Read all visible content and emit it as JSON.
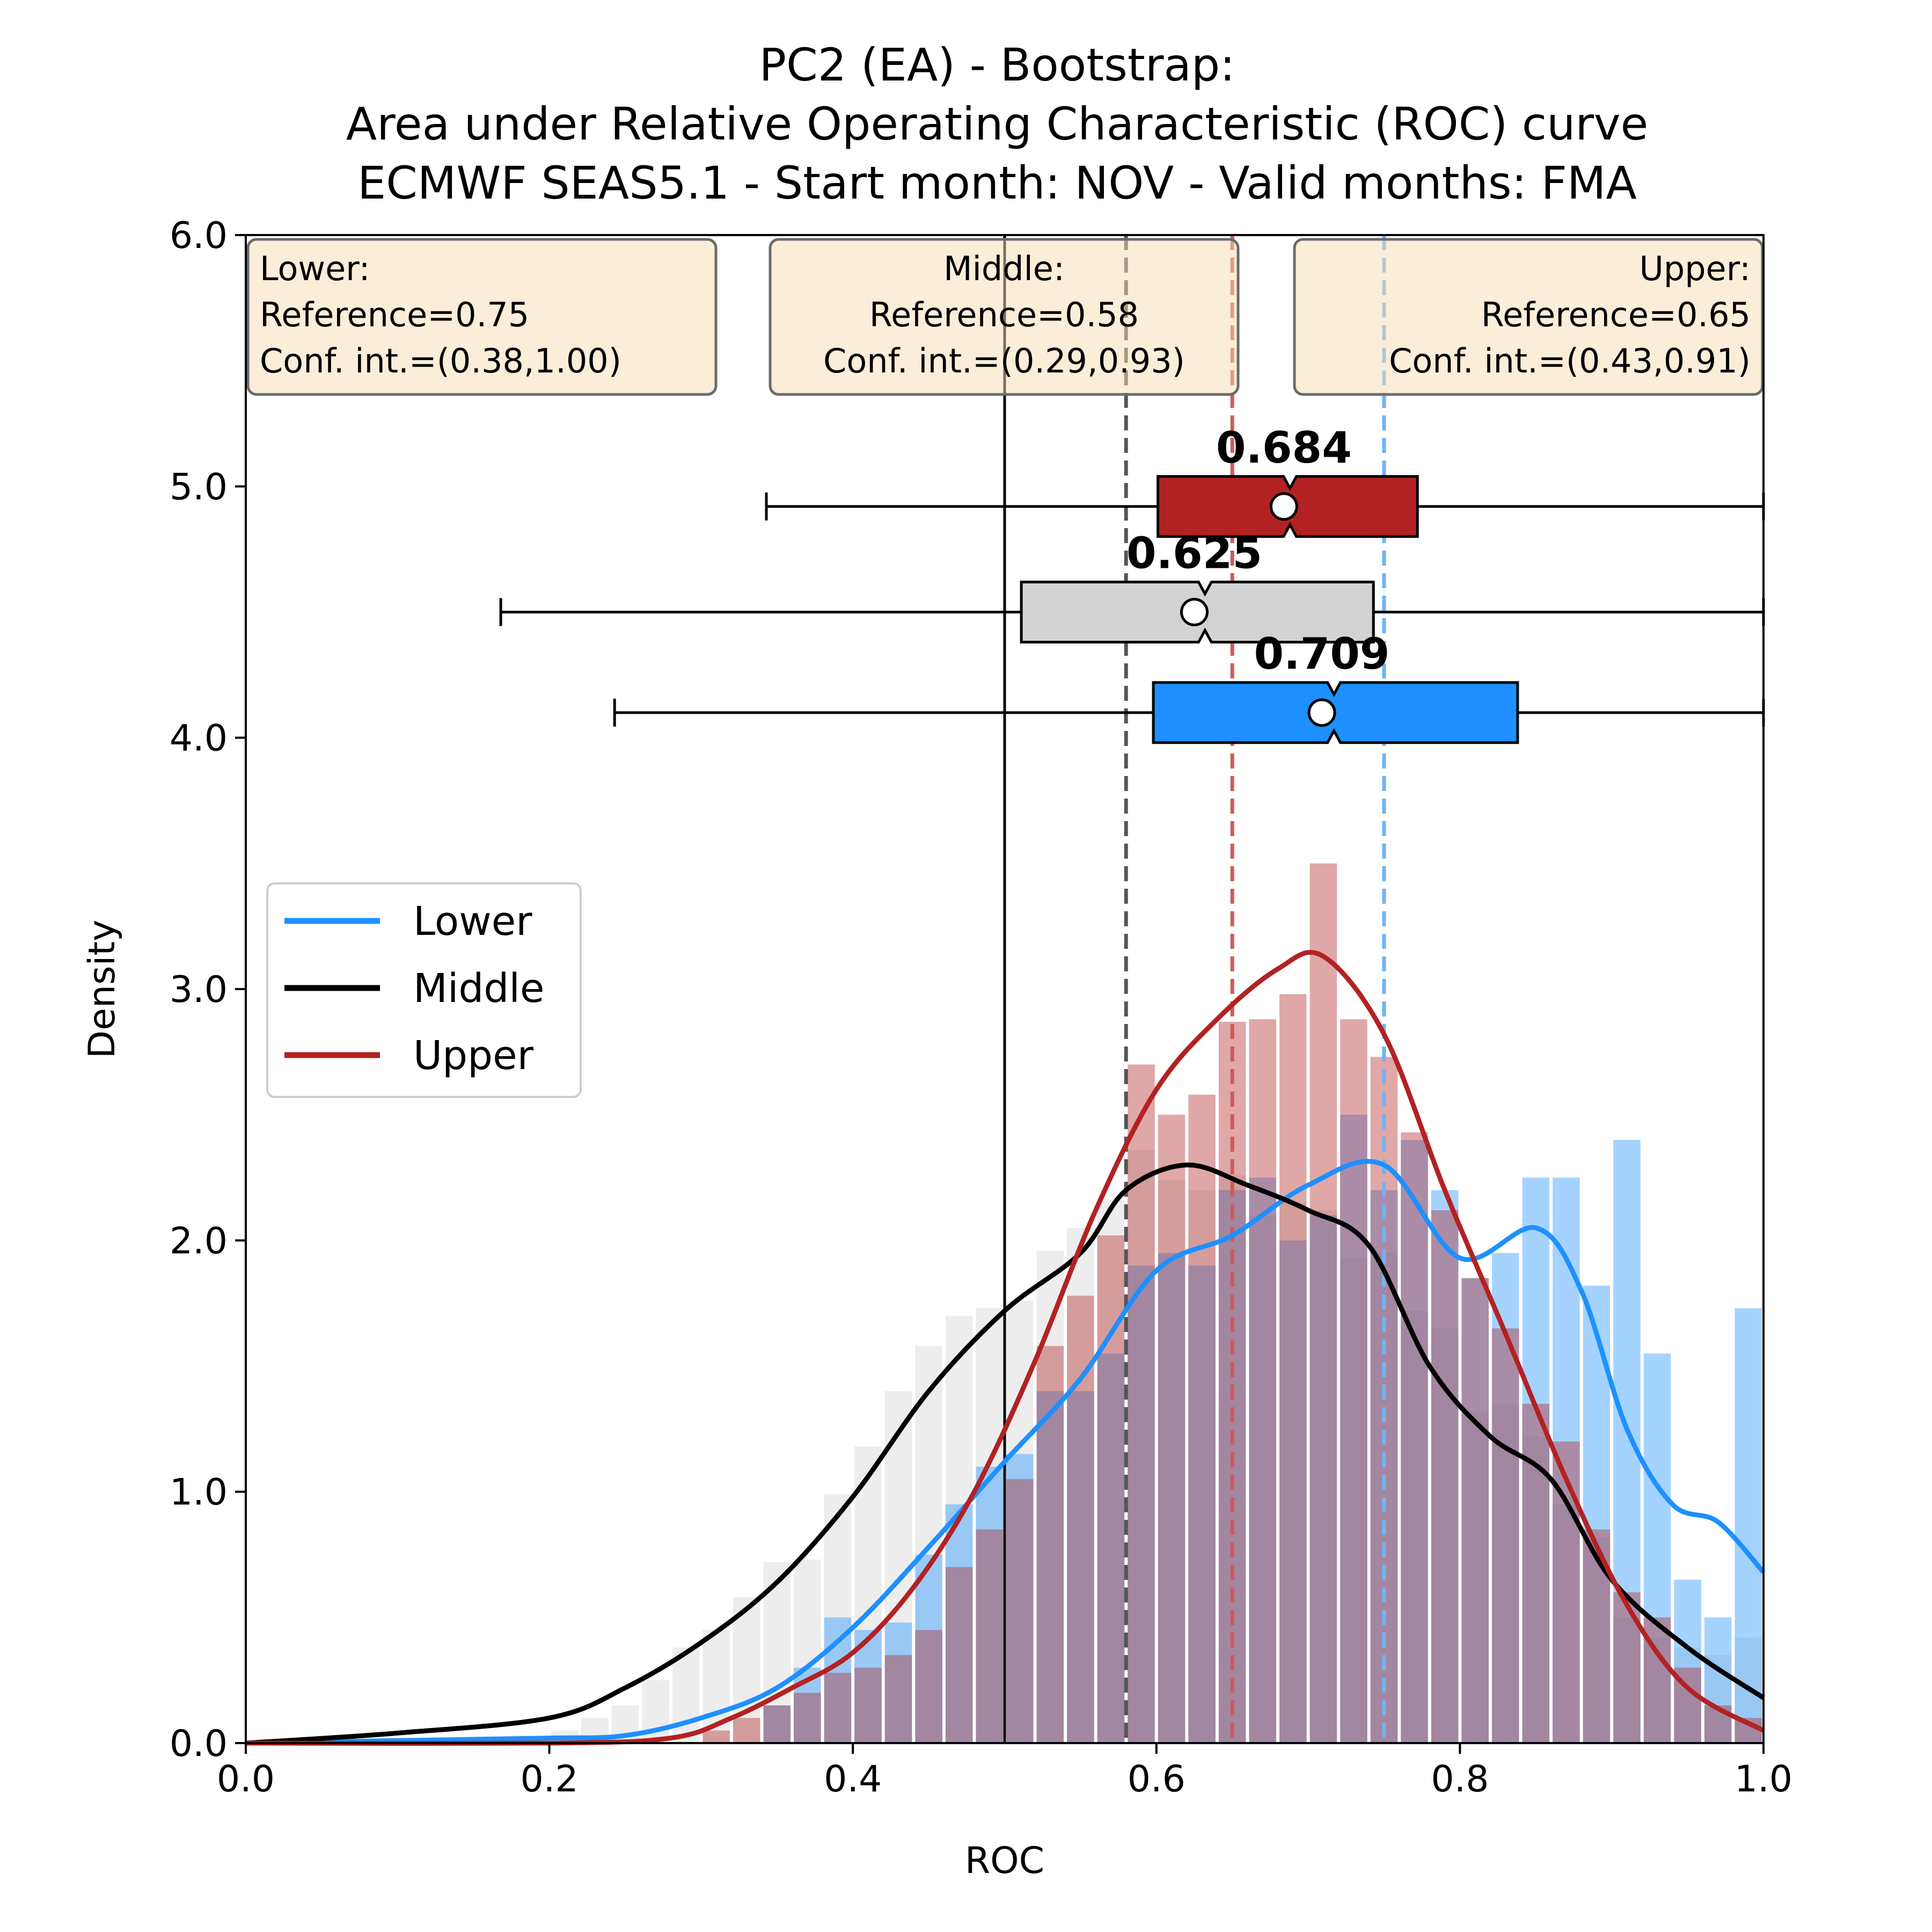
{
  "chart_data": {
    "type": "bar",
    "title_lines": [
      "PC2 (EA) - Bootstrap:",
      "Area under Relative Operating Characteristic (ROC) curve",
      "ECMWF SEAS5.1 - Start month: NOV - Valid months: FMA"
    ],
    "xlabel": "ROC",
    "ylabel": "Density",
    "xlim": [
      0.0,
      1.0
    ],
    "ylim": [
      0.0,
      6.0
    ],
    "xticks": [
      "0.0",
      "0.2",
      "0.4",
      "0.6",
      "0.8",
      "1.0"
    ],
    "yticks": [
      "0.0",
      "1.0",
      "2.0",
      "3.0",
      "4.0",
      "5.0",
      "6.0"
    ],
    "grid": false,
    "legend_placement": "center-left",
    "chance_line_x": 0.5,
    "info_boxes": [
      {
        "lines": [
          "Lower:",
          "Reference=0.75",
          "Conf. int.=(0.38,1.00)"
        ],
        "align": "left"
      },
      {
        "lines": [
          "Middle:",
          "Reference=0.58",
          "Conf. int.=(0.29,0.93)"
        ],
        "align": "center"
      },
      {
        "lines": [
          "Upper:",
          "Reference=0.65",
          "Conf. int.=(0.43,0.91)"
        ],
        "align": "right"
      }
    ],
    "histogram_bins": [
      0.0,
      0.02,
      0.04,
      0.06,
      0.08,
      0.1,
      0.12,
      0.14,
      0.16,
      0.18,
      0.2,
      0.22,
      0.24,
      0.26,
      0.28,
      0.3,
      0.32,
      0.34,
      0.36,
      0.38,
      0.4,
      0.42,
      0.44,
      0.46,
      0.48,
      0.5,
      0.52,
      0.54,
      0.56,
      0.58,
      0.6,
      0.62,
      0.64,
      0.66,
      0.68,
      0.7,
      0.72,
      0.74,
      0.76,
      0.78,
      0.8,
      0.82,
      0.84,
      0.86,
      0.88,
      0.9,
      0.92,
      0.94,
      0.96,
      0.98
    ],
    "series": [
      {
        "name": "Lower",
        "color": "#1e90ff",
        "reference": 0.75,
        "median_label": "0.709",
        "box": {
          "whisker_low": 0.243,
          "q1": 0.598,
          "median": 0.717,
          "q3": 0.838,
          "whisker_high": 1.0,
          "mean": 0.709,
          "y": 4.1
        },
        "hist": [
          0,
          0,
          0,
          0,
          0,
          0,
          0,
          0,
          0,
          0,
          0,
          0,
          0,
          0,
          0,
          0,
          0,
          0.15,
          0.3,
          0.5,
          0.45,
          0.48,
          0.75,
          0.95,
          1.1,
          1.15,
          1.4,
          1.4,
          1.55,
          1.9,
          1.95,
          1.9,
          2.2,
          2.25,
          2.0,
          2.1,
          2.5,
          2.2,
          2.4,
          2.2,
          1.85,
          1.95,
          2.25,
          2.25,
          1.82,
          2.4,
          1.55,
          0.65,
          0.5,
          1.73
        ],
        "kde": [
          [
            0.0,
            0.0
          ],
          [
            0.1,
            0.01
          ],
          [
            0.2,
            0.02
          ],
          [
            0.25,
            0.03
          ],
          [
            0.3,
            0.1
          ],
          [
            0.35,
            0.22
          ],
          [
            0.4,
            0.46
          ],
          [
            0.45,
            0.78
          ],
          [
            0.5,
            1.12
          ],
          [
            0.55,
            1.45
          ],
          [
            0.6,
            1.88
          ],
          [
            0.65,
            2.02
          ],
          [
            0.7,
            2.22
          ],
          [
            0.75,
            2.3
          ],
          [
            0.8,
            1.93
          ],
          [
            0.85,
            2.05
          ],
          [
            0.88,
            1.8
          ],
          [
            0.91,
            1.25
          ],
          [
            0.94,
            0.95
          ],
          [
            0.97,
            0.88
          ],
          [
            1.0,
            0.68
          ]
        ]
      },
      {
        "name": "Middle",
        "color": "#000000",
        "reference": 0.58,
        "median_label": "0.625",
        "box": {
          "whisker_low": 0.168,
          "q1": 0.511,
          "median": 0.632,
          "q3": 0.743,
          "whisker_high": 1.0,
          "mean": 0.625,
          "y": 4.5
        },
        "hist": [
          0,
          0,
          0,
          0,
          0,
          0,
          0,
          0,
          0,
          0,
          0.05,
          0.1,
          0.15,
          0.25,
          0.38,
          0.45,
          0.58,
          0.72,
          0.73,
          0.99,
          1.18,
          1.4,
          1.58,
          1.7,
          1.73,
          1.76,
          1.96,
          2.05,
          2.16,
          2.36,
          2.24,
          2.2,
          2.26,
          2.1,
          2.15,
          2.12,
          1.93,
          1.95,
          1.72,
          1.65,
          1.32,
          1.35,
          1.22,
          0.95,
          0.82,
          0.5,
          0.42,
          0.38,
          0.35,
          0.42
        ],
        "kde": [
          [
            0.0,
            0.0
          ],
          [
            0.1,
            0.04
          ],
          [
            0.2,
            0.1
          ],
          [
            0.25,
            0.22
          ],
          [
            0.3,
            0.4
          ],
          [
            0.35,
            0.64
          ],
          [
            0.4,
            0.98
          ],
          [
            0.45,
            1.4
          ],
          [
            0.5,
            1.72
          ],
          [
            0.55,
            1.95
          ],
          [
            0.58,
            2.2
          ],
          [
            0.62,
            2.3
          ],
          [
            0.66,
            2.22
          ],
          [
            0.7,
            2.12
          ],
          [
            0.74,
            1.98
          ],
          [
            0.78,
            1.5
          ],
          [
            0.82,
            1.22
          ],
          [
            0.86,
            1.05
          ],
          [
            0.9,
            0.65
          ],
          [
            0.95,
            0.38
          ],
          [
            1.0,
            0.18
          ]
        ]
      },
      {
        "name": "Upper",
        "color": "#b22222",
        "reference": 0.65,
        "median_label": "0.684",
        "box": {
          "whisker_low": 0.343,
          "q1": 0.601,
          "median": 0.688,
          "q3": 0.772,
          "whisker_high": 1.0,
          "mean": 0.684,
          "y": 4.92
        },
        "hist": [
          0,
          0,
          0,
          0,
          0,
          0,
          0,
          0,
          0,
          0,
          0,
          0,
          0,
          0,
          0,
          0.05,
          0.1,
          0.15,
          0.2,
          0.28,
          0.3,
          0.35,
          0.45,
          0.7,
          0.85,
          1.05,
          1.58,
          1.78,
          2.02,
          2.7,
          2.5,
          2.58,
          2.87,
          2.88,
          2.98,
          3.5,
          2.88,
          2.73,
          2.43,
          2.12,
          1.85,
          1.65,
          1.35,
          1.2,
          0.85,
          0.6,
          0.5,
          0.3,
          0.15,
          0.1
        ],
        "kde": [
          [
            0.0,
            0.0
          ],
          [
            0.2,
            0.0
          ],
          [
            0.28,
            0.02
          ],
          [
            0.32,
            0.1
          ],
          [
            0.36,
            0.22
          ],
          [
            0.4,
            0.36
          ],
          [
            0.44,
            0.62
          ],
          [
            0.48,
            1.0
          ],
          [
            0.52,
            1.52
          ],
          [
            0.56,
            2.12
          ],
          [
            0.6,
            2.6
          ],
          [
            0.64,
            2.88
          ],
          [
            0.68,
            3.08
          ],
          [
            0.71,
            3.13
          ],
          [
            0.75,
            2.82
          ],
          [
            0.79,
            2.2
          ],
          [
            0.83,
            1.63
          ],
          [
            0.87,
            1.05
          ],
          [
            0.91,
            0.55
          ],
          [
            0.95,
            0.22
          ],
          [
            1.0,
            0.05
          ]
        ]
      }
    ]
  }
}
